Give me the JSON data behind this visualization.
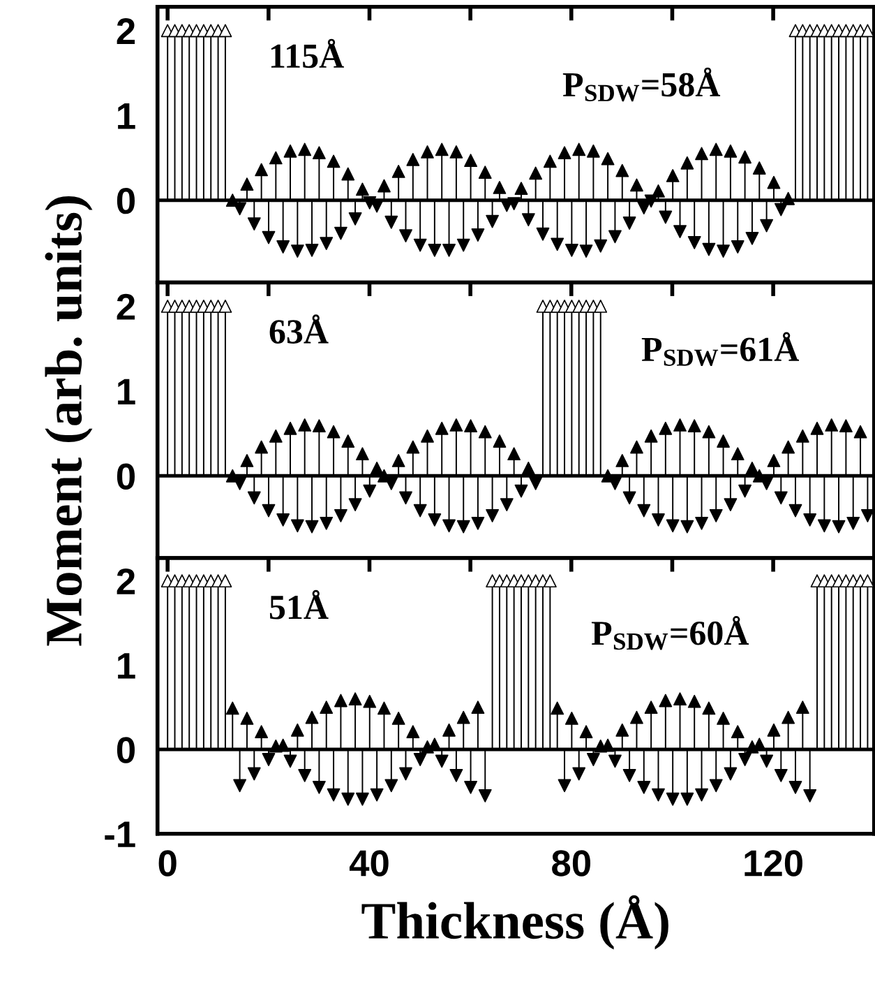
{
  "chart_data": [
    {
      "type": "lollipop",
      "annotations": [
        "115Å",
        "P$_{SDW}$=58Å"
      ],
      "xlim": [
        -2,
        140
      ],
      "xticks": [
        0,
        {
          "value": 20,
          "label": null
        },
        40,
        {
          "value": 60,
          "label": null
        },
        80,
        {
          "value": 100,
          "label": null
        },
        120,
        {
          "value": 140,
          "label": null
        }
      ],
      "ylim": [
        -0.97,
        2.28
      ],
      "yticks": [
        {
          "value": -0.5,
          "label": null
        },
        0,
        {
          "value": 0.5,
          "label": null
        },
        1,
        {
          "value": 1.5,
          "label": null
        },
        2
      ],
      "tick_labels": "y",
      "marker": "triangle",
      "series": [
        {
          "color": "#ffffff",
          "x": [
            0,
            1.43,
            2.86,
            4.29,
            5.72,
            7.15,
            8.58,
            10.01,
            11.44,
            124.41,
            125.84,
            127.27,
            128.7,
            130.13,
            131.56,
            132.99,
            134.42,
            135.85,
            137.28,
            138.71
          ],
          "values": [
            2,
            2,
            2,
            2,
            2,
            2,
            2,
            2,
            2,
            2,
            2,
            2,
            2,
            2,
            2,
            2,
            2,
            2,
            2,
            2
          ]
        },
        {
          "color": "#000000",
          "x": [
            12.87,
            14.3,
            15.73,
            17.16,
            18.59,
            20.02,
            21.45,
            22.88,
            24.31,
            25.74,
            27.17,
            28.6,
            30.03,
            31.46,
            32.89,
            34.32,
            35.75,
            37.18,
            38.61,
            40.04,
            41.47,
            42.9,
            44.33,
            45.76,
            47.19,
            48.62,
            50.05,
            51.48,
            52.91,
            54.34,
            55.77,
            57.2,
            58.63,
            60.06,
            61.49,
            62.92,
            64.35,
            65.78,
            67.21,
            68.64,
            70.07,
            71.5,
            72.93,
            74.36,
            75.79,
            77.22,
            78.65,
            80.08,
            81.51,
            82.94,
            84.37,
            85.8,
            87.23,
            88.66,
            90.09,
            91.52,
            92.95,
            94.38,
            95.81,
            97.24,
            98.67,
            100.1,
            101.53,
            102.96,
            104.39,
            105.82,
            107.25,
            108.68,
            110.11,
            111.54,
            112.97,
            114.4,
            115.83,
            117.26,
            118.69,
            120.12,
            121.55,
            122.98
          ],
          "values": [
            0,
            -0.1,
            0.19,
            -0.28,
            0.36,
            -0.44,
            0.5,
            -0.55,
            0.58,
            -0.6,
            0.6,
            -0.59,
            0.56,
            -0.51,
            0.46,
            -0.39,
            0.31,
            -0.22,
            0.13,
            -0.03,
            -0.07,
            0.17,
            -0.26,
            0.34,
            -0.42,
            0.48,
            -0.53,
            0.57,
            -0.59,
            0.6,
            -0.59,
            0.57,
            -0.53,
            0.47,
            -0.41,
            0.33,
            -0.25,
            0.15,
            -0.06,
            -0.04,
            0.14,
            -0.23,
            0.32,
            -0.4,
            0.46,
            -0.52,
            0.56,
            -0.59,
            0.6,
            -0.6,
            0.58,
            -0.54,
            0.49,
            -0.43,
            0.35,
            -0.27,
            0.18,
            -0.09,
            -0.01,
            0.11,
            -0.2,
            0.29,
            -0.37,
            0.44,
            -0.5,
            0.55,
            -0.58,
            0.6,
            -0.6,
            0.58,
            -0.55,
            0.51,
            -0.45,
            0.38,
            -0.3,
            0.21,
            -0.11,
            0.02
          ]
        }
      ]
    },
    {
      "type": "lollipop",
      "annotations": [
        "63Å",
        "P$_{SDW}$=61Å"
      ],
      "ylabel": "Moment (arb. units)",
      "xlim": [
        -2,
        140
      ],
      "xticks": [
        0,
        {
          "value": 20,
          "label": null
        },
        40,
        {
          "value": 60,
          "label": null
        },
        80,
        {
          "value": 100,
          "label": null
        },
        120,
        {
          "value": 140,
          "label": null
        }
      ],
      "ylim": [
        -0.97,
        2.28
      ],
      "yticks": [
        {
          "value": -0.5,
          "label": null
        },
        0,
        {
          "value": 0.5,
          "label": null
        },
        1,
        {
          "value": 1.5,
          "label": null
        },
        2
      ],
      "tick_labels": "y",
      "marker": "triangle",
      "series": [
        {
          "color": "#ffffff",
          "x": [
            0,
            1.43,
            2.86,
            4.29,
            5.72,
            7.15,
            8.58,
            10.01,
            11.44,
            74.36,
            75.79,
            77.22,
            78.65,
            80.08,
            81.51,
            82.94,
            84.37,
            85.8
          ],
          "values": [
            2,
            2,
            2,
            2,
            2,
            2,
            2,
            2,
            2,
            2,
            2,
            2,
            2,
            2,
            2,
            2,
            2,
            2
          ]
        },
        {
          "color": "#000000",
          "x": [
            12.87,
            14.3,
            15.73,
            17.16,
            18.59,
            20.02,
            21.45,
            22.88,
            24.31,
            25.74,
            27.17,
            28.6,
            30.03,
            31.46,
            32.89,
            34.32,
            35.75,
            37.18,
            38.61,
            40.04,
            41.47,
            42.9,
            44.33,
            45.76,
            47.19,
            48.62,
            50.05,
            51.48,
            52.91,
            54.34,
            55.77,
            57.2,
            58.63,
            60.06,
            61.49,
            62.92,
            64.35,
            65.78,
            67.21,
            68.64,
            70.07,
            71.5,
            72.93,
            87.23,
            88.66,
            90.09,
            91.52,
            92.95,
            94.38,
            95.81,
            97.24,
            98.67,
            100.1,
            101.53,
            102.96,
            104.39,
            105.82,
            107.25,
            108.68,
            110.11,
            111.54,
            112.97,
            114.4,
            115.83,
            117.26,
            118.69,
            120.12,
            121.55,
            122.98,
            124.41,
            125.84,
            127.27,
            128.7,
            130.13,
            131.56,
            132.99,
            134.42,
            135.85,
            137.28,
            138.71
          ],
          "values": [
            0,
            -0.09,
            0.18,
            -0.26,
            0.34,
            -0.41,
            0.47,
            -0.52,
            0.56,
            -0.59,
            0.6,
            -0.6,
            0.59,
            -0.56,
            0.52,
            -0.47,
            0.41,
            -0.34,
            0.26,
            -0.18,
            0.09,
            0,
            -0.09,
            0.18,
            -0.26,
            0.34,
            -0.41,
            0.47,
            -0.52,
            0.56,
            -0.59,
            0.6,
            -0.6,
            0.59,
            -0.56,
            0.52,
            -0.47,
            0.41,
            -0.34,
            0.26,
            -0.18,
            0.09,
            -0.09,
            0,
            -0.09,
            0.18,
            -0.26,
            0.34,
            -0.41,
            0.47,
            -0.52,
            0.56,
            -0.59,
            0.6,
            -0.6,
            0.59,
            -0.56,
            0.52,
            -0.47,
            0.41,
            -0.34,
            0.26,
            -0.18,
            0.09,
            0,
            -0.09,
            0.18,
            -0.26,
            0.34,
            -0.41,
            0.47,
            -0.52,
            0.56,
            -0.59,
            0.6,
            -0.6,
            0.59,
            -0.56,
            0.52,
            -0.47
          ]
        }
      ]
    },
    {
      "type": "lollipop",
      "annotations": [
        "51Å",
        "P$_{SDW}$=60Å"
      ],
      "xlabel": "Thickness (Å)",
      "xlim": [
        -2,
        140
      ],
      "xticks": [
        0,
        {
          "value": 20,
          "label": null
        },
        40,
        {
          "value": 60,
          "label": null
        },
        80,
        {
          "value": 100,
          "label": null
        },
        120,
        {
          "value": 140,
          "label": null
        }
      ],
      "ylim": [
        -1,
        2.27
      ],
      "yticks": [
        -1,
        {
          "value": -0.5,
          "label": null
        },
        0,
        {
          "value": 0.5,
          "label": null
        },
        1,
        {
          "value": 1.5,
          "label": null
        },
        2
      ],
      "marker": "triangle",
      "series": [
        {
          "color": "#ffffff",
          "x": [
            0,
            1.43,
            2.86,
            4.29,
            5.72,
            7.15,
            8.58,
            10.01,
            11.44,
            64.35,
            65.78,
            67.21,
            68.64,
            70.07,
            71.5,
            72.93,
            74.36,
            75.79,
            128.7,
            130.13,
            131.56,
            132.99,
            134.42,
            135.85,
            137.28,
            138.71
          ],
          "values": [
            2,
            2,
            2,
            2,
            2,
            2,
            2,
            2,
            2,
            2,
            2,
            2,
            2,
            2,
            2,
            2,
            2,
            2,
            2,
            2,
            2,
            2,
            2,
            2,
            2,
            2
          ]
        },
        {
          "color": "#000000",
          "x": [
            12.87,
            14.3,
            15.73,
            17.16,
            18.59,
            20.02,
            21.45,
            22.88,
            24.31,
            25.74,
            27.17,
            28.6,
            30.03,
            31.46,
            32.89,
            34.32,
            35.75,
            37.18,
            38.61,
            40.04,
            41.47,
            42.9,
            44.33,
            45.76,
            47.19,
            48.62,
            50.05,
            51.48,
            52.91,
            54.34,
            55.77,
            57.2,
            58.63,
            60.06,
            61.49,
            62.92,
            77.22,
            78.65,
            80.08,
            81.51,
            82.94,
            84.37,
            85.8,
            87.23,
            88.66,
            90.09,
            91.52,
            92.95,
            94.38,
            95.81,
            97.24,
            98.67,
            100.1,
            101.53,
            102.96,
            104.39,
            105.82,
            107.25,
            108.68,
            110.11,
            111.54,
            112.97,
            114.4,
            115.83,
            117.26,
            118.69,
            120.12,
            121.55,
            122.98,
            124.41,
            125.84,
            127.27
          ],
          "values": [
            0.49,
            -0.43,
            0.37,
            -0.29,
            0.21,
            -0.12,
            0.04,
            0.05,
            -0.14,
            0.23,
            -0.31,
            0.38,
            -0.45,
            0.5,
            -0.54,
            0.58,
            -0.59,
            0.6,
            -0.59,
            0.57,
            -0.54,
            0.49,
            -0.43,
            0.37,
            -0.29,
            0.21,
            -0.12,
            0.03,
            0.06,
            -0.14,
            0.23,
            -0.31,
            0.38,
            -0.45,
            0.5,
            -0.55,
            0.49,
            -0.43,
            0.37,
            -0.29,
            0.21,
            -0.12,
            0.04,
            0.05,
            -0.14,
            0.23,
            -0.31,
            0.38,
            -0.45,
            0.5,
            -0.54,
            0.58,
            -0.59,
            0.6,
            -0.59,
            0.57,
            -0.54,
            0.49,
            -0.43,
            0.37,
            -0.29,
            0.21,
            -0.12,
            0.03,
            0.06,
            -0.14,
            0.23,
            -0.31,
            0.38,
            -0.45,
            0.5,
            -0.55
          ]
        }
      ]
    }
  ]
}
